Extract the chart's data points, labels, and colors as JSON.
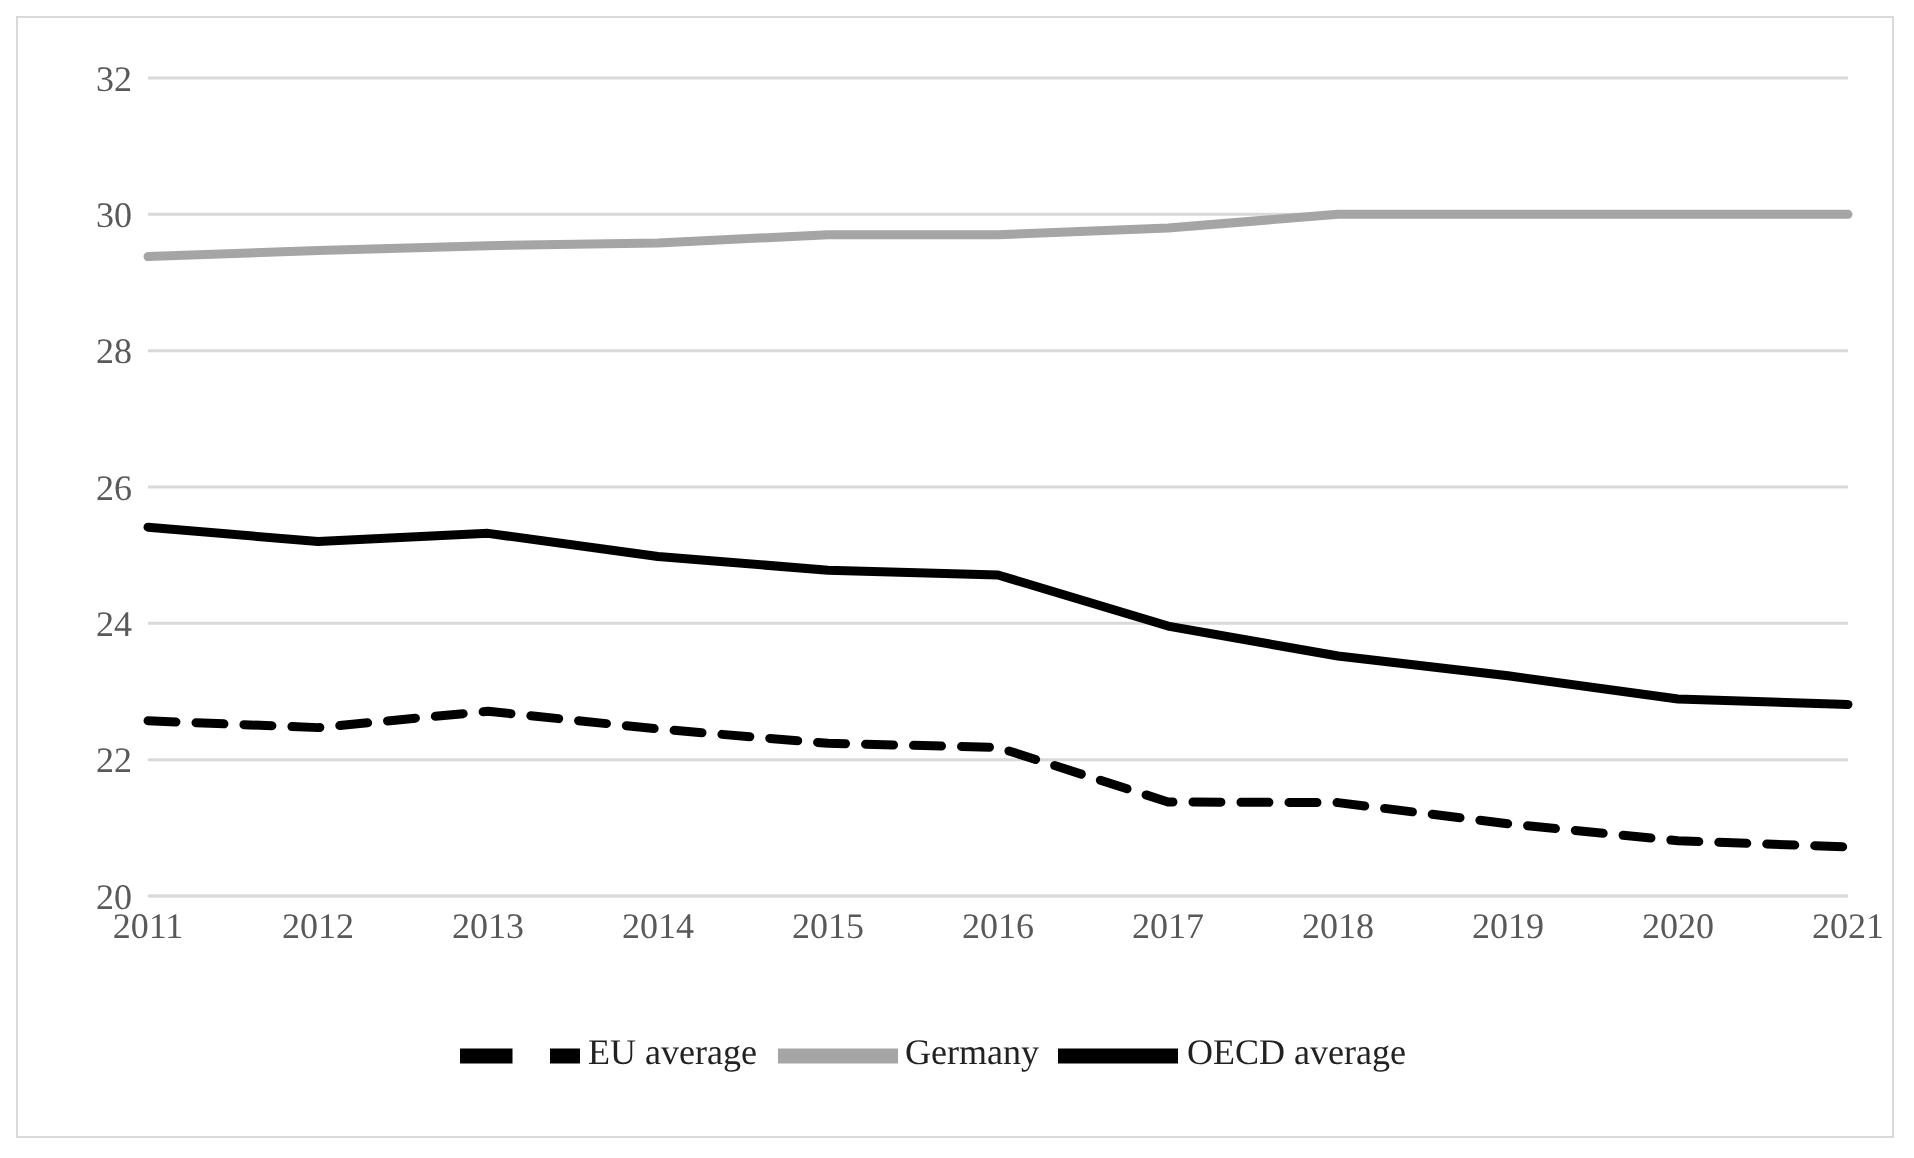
{
  "chart_data": {
    "type": "line",
    "categories": [
      "2011",
      "2012",
      "2013",
      "2014",
      "2015",
      "2016",
      "2017",
      "2018",
      "2019",
      "2020",
      "2021"
    ],
    "series": [
      {
        "name": "OECD average",
        "color": "#000000",
        "line_style": "solid",
        "values": [
          25.41,
          25.2,
          25.32,
          24.98,
          24.78,
          24.71,
          23.96,
          23.52,
          23.23,
          22.89,
          22.81
        ]
      },
      {
        "name": "EU average",
        "color": "#000000",
        "line_style": "dashed",
        "values": [
          22.57,
          22.47,
          22.71,
          22.45,
          22.24,
          22.18,
          21.38,
          21.37,
          21.06,
          20.81,
          20.72
        ]
      },
      {
        "name": "Germany",
        "color": "#a5a5a5",
        "line_style": "solid",
        "values": [
          29.38,
          29.47,
          29.54,
          29.58,
          29.7,
          29.7,
          29.8,
          30,
          30,
          30,
          30
        ]
      }
    ],
    "ylim": [
      20,
      32
    ],
    "yticks": [
      20,
      22,
      24,
      26,
      28,
      30,
      32
    ],
    "grid": "y",
    "legend": "bottom",
    "marker": "none"
  }
}
